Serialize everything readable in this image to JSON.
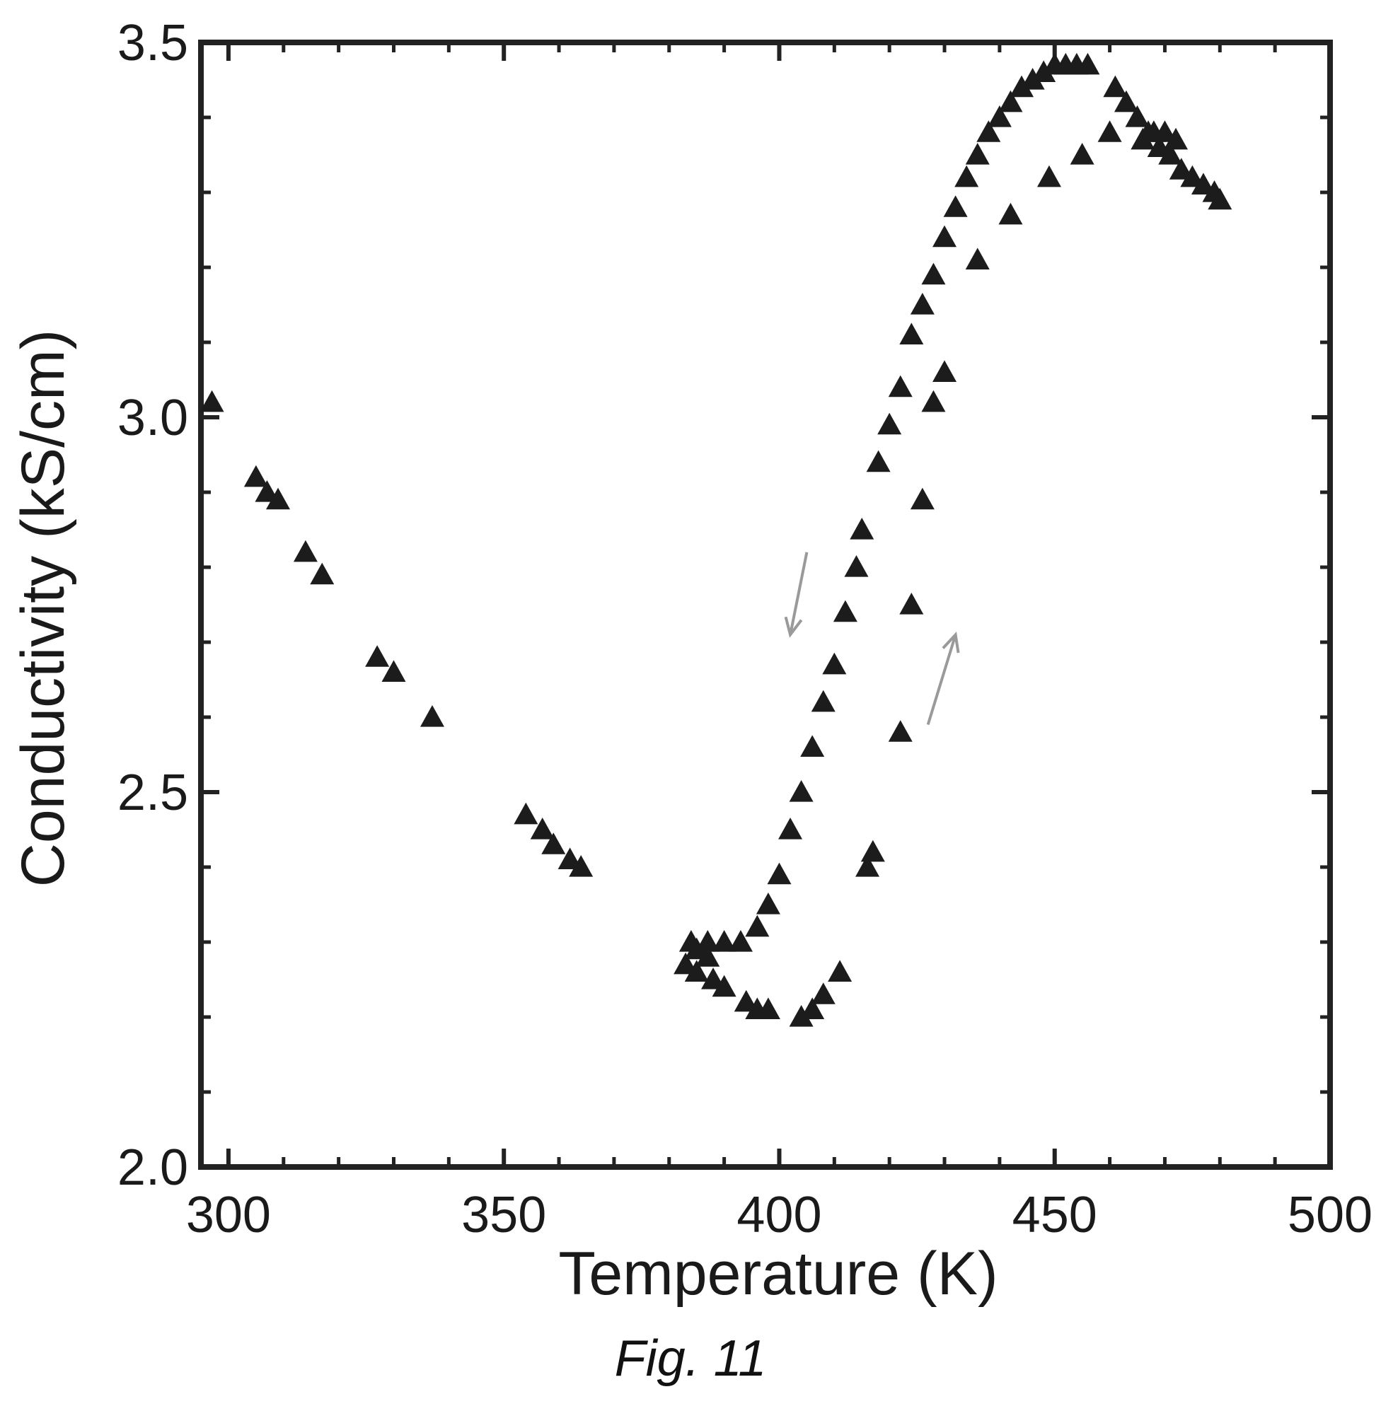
{
  "caption": "Fig. 11",
  "colors": {
    "marker": "#1c1c1c",
    "frame": "#222222",
    "arrow": "#9a9a9a"
  },
  "chart_data": {
    "type": "scatter",
    "title": "",
    "xlabel": "Temperature (K)",
    "ylabel": "Conductivity (kS/cm)",
    "xlim": [
      295,
      500
    ],
    "ylim": [
      2.0,
      3.5
    ],
    "xticks": [
      300,
      350,
      400,
      450,
      500
    ],
    "xtick_labels": [
      "300",
      "350",
      "400",
      "450",
      "500"
    ],
    "yticks": [
      2.0,
      2.5,
      3.0,
      3.5
    ],
    "ytick_labels": [
      "2.0",
      "2.5",
      "3.0",
      "3.5"
    ],
    "grid": false,
    "legend": "none",
    "marker": "triangle",
    "annotations": [
      {
        "type": "arrow",
        "direction": "down",
        "from": [
          405,
          2.82
        ],
        "to": [
          402,
          2.71
        ]
      },
      {
        "type": "arrow",
        "direction": "up",
        "from": [
          427,
          2.59
        ],
        "to": [
          432,
          2.71
        ]
      }
    ],
    "series": [
      {
        "values": [
          [
            297,
            3.02
          ],
          [
            305,
            2.92
          ],
          [
            307,
            2.9
          ],
          [
            309,
            2.89
          ],
          [
            314,
            2.82
          ],
          [
            317,
            2.79
          ],
          [
            327,
            2.68
          ],
          [
            330,
            2.66
          ],
          [
            337,
            2.6
          ],
          [
            354,
            2.47
          ],
          [
            357,
            2.45
          ],
          [
            359,
            2.43
          ],
          [
            362,
            2.41
          ],
          [
            364,
            2.4
          ],
          [
            384,
            2.3
          ],
          [
            387,
            2.3
          ],
          [
            390,
            2.3
          ],
          [
            393,
            2.3
          ],
          [
            396,
            2.32
          ],
          [
            398,
            2.35
          ],
          [
            400,
            2.39
          ],
          [
            402,
            2.45
          ],
          [
            404,
            2.5
          ],
          [
            406,
            2.56
          ],
          [
            408,
            2.62
          ],
          [
            410,
            2.67
          ],
          [
            412,
            2.74
          ],
          [
            414,
            2.8
          ],
          [
            415,
            2.85
          ],
          [
            418,
            2.94
          ],
          [
            420,
            2.99
          ],
          [
            422,
            3.04
          ],
          [
            424,
            3.11
          ],
          [
            426,
            3.15
          ],
          [
            428,
            3.19
          ],
          [
            430,
            3.24
          ],
          [
            432,
            3.28
          ],
          [
            434,
            3.32
          ],
          [
            436,
            3.35
          ],
          [
            438,
            3.38
          ],
          [
            440,
            3.4
          ],
          [
            442,
            3.42
          ],
          [
            444,
            3.44
          ],
          [
            446,
            3.45
          ],
          [
            448,
            3.46
          ],
          [
            450,
            3.47
          ],
          [
            452,
            3.47
          ],
          [
            454,
            3.47
          ],
          [
            456,
            3.47
          ],
          [
            461,
            3.44
          ],
          [
            463,
            3.42
          ],
          [
            465,
            3.4
          ],
          [
            467,
            3.38
          ],
          [
            469,
            3.36
          ],
          [
            471,
            3.35
          ],
          [
            473,
            3.33
          ],
          [
            475,
            3.32
          ],
          [
            477,
            3.31
          ],
          [
            479,
            3.3
          ],
          [
            480,
            3.29
          ],
          [
            472,
            3.37
          ],
          [
            470,
            3.38
          ],
          [
            468,
            3.38
          ],
          [
            466,
            3.37
          ],
          [
            460,
            3.38
          ],
          [
            455,
            3.35
          ],
          [
            449,
            3.32
          ],
          [
            442,
            3.27
          ],
          [
            436,
            3.21
          ],
          [
            430,
            3.06
          ],
          [
            428,
            3.02
          ],
          [
            426,
            2.89
          ],
          [
            424,
            2.75
          ],
          [
            422,
            2.58
          ],
          [
            417,
            2.42
          ],
          [
            416,
            2.4
          ],
          [
            411,
            2.26
          ],
          [
            408,
            2.23
          ],
          [
            406,
            2.21
          ],
          [
            404,
            2.2
          ],
          [
            398,
            2.21
          ],
          [
            396,
            2.21
          ],
          [
            394,
            2.22
          ],
          [
            390,
            2.24
          ],
          [
            388,
            2.25
          ],
          [
            385,
            2.26
          ],
          [
            383,
            2.27
          ],
          [
            385,
            2.29
          ],
          [
            387,
            2.28
          ]
        ]
      }
    ]
  }
}
